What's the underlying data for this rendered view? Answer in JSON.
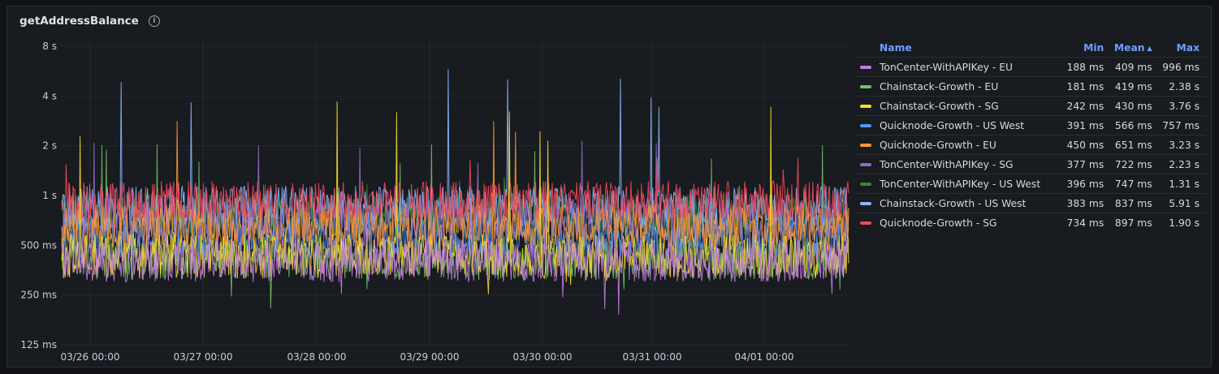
{
  "panel": {
    "title": "getAddressBalance",
    "info_icon": "info-circle-icon"
  },
  "legend": {
    "headers": {
      "name": "Name",
      "min": "Min",
      "mean": "Mean",
      "max": "Max"
    },
    "sort_indicator": "ascending"
  },
  "chart_data": {
    "type": "line",
    "title": "getAddressBalance",
    "xlabel": "",
    "ylabel": "",
    "y_scale": "log2",
    "ylim": [
      "125 ms",
      "8 s"
    ],
    "y_ticks": [
      "8 s",
      "4 s",
      "2 s",
      "1 s",
      "500 ms",
      "250 ms",
      "125 ms"
    ],
    "x_ticks": [
      "03/26 00:00",
      "03/27 00:00",
      "03/28 00:00",
      "03/29 00:00",
      "03/30 00:00",
      "03/31 00:00",
      "04/01 00:00"
    ],
    "grid": true,
    "legend_placement": "right",
    "series": [
      {
        "name": "TonCenter-WithAPIKey - EU",
        "color": "#c47de0",
        "min": "188 ms",
        "mean": "409 ms",
        "max": "996 ms"
      },
      {
        "name": "Chainstack-Growth - EU",
        "color": "#73bf69",
        "min": "181 ms",
        "mean": "419 ms",
        "max": "2.38 s"
      },
      {
        "name": "Chainstack-Growth - SG",
        "color": "#fade2a",
        "min": "242 ms",
        "mean": "430 ms",
        "max": "3.76 s"
      },
      {
        "name": "Quicknode-Growth - US West",
        "color": "#5794f2",
        "min": "391 ms",
        "mean": "566 ms",
        "max": "757 ms"
      },
      {
        "name": "Quicknode-Growth - EU",
        "color": "#ff9830",
        "min": "450 ms",
        "mean": "651 ms",
        "max": "3.23 s"
      },
      {
        "name": "TonCenter-WithAPIKey - SG",
        "color": "#8f6bc0",
        "min": "377 ms",
        "mean": "722 ms",
        "max": "2.23 s"
      },
      {
        "name": "TonCenter-WithAPIKey - US West",
        "color": "#37872d",
        "min": "396 ms",
        "mean": "747 ms",
        "max": "1.31 s"
      },
      {
        "name": "Chainstack-Growth - US West",
        "color": "#8ab8ff",
        "min": "383 ms",
        "mean": "837 ms",
        "max": "5.91 s"
      },
      {
        "name": "Quicknode-Growth - SG",
        "color": "#f2495c",
        "min": "734 ms",
        "mean": "897 ms",
        "max": "1.90 s"
      }
    ]
  }
}
